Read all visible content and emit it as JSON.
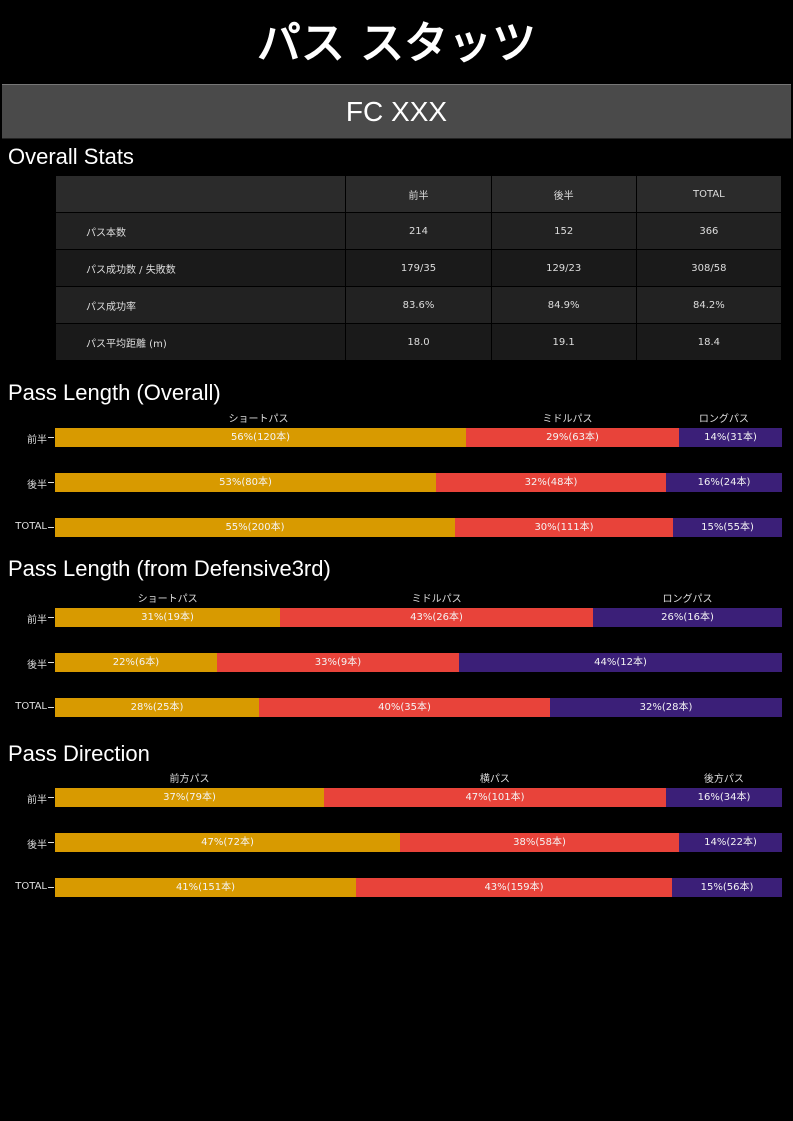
{
  "page_title": "パス スタッツ",
  "team_name": "FC XXX",
  "overall_stats": {
    "section_title": "Overall Stats",
    "columns": [
      "前半",
      "後半",
      "TOTAL"
    ],
    "rows": [
      {
        "label": "パス本数",
        "values": [
          "214",
          "152",
          "366"
        ]
      },
      {
        "label": "パス成功数 / 失敗数",
        "values": [
          "179/35",
          "129/23",
          "308/58"
        ]
      },
      {
        "label": "パス成功率",
        "values": [
          "83.6%",
          "84.9%",
          "84.2%"
        ]
      },
      {
        "label": "パス平均距離 (m)",
        "values": [
          "18.0",
          "19.1",
          "18.4"
        ]
      }
    ]
  },
  "colors": {
    "first": "#d89a00",
    "second": "#e8433a",
    "third": "#3b1f78"
  },
  "chart_data": [
    {
      "type": "bar",
      "stacked": "horizontal-100%",
      "title": "Pass Length (Overall)",
      "categories": [
        "前半",
        "後半",
        "TOTAL"
      ],
      "series": [
        {
          "name": "ショートパス",
          "values": [
            56,
            53,
            55
          ],
          "labels": [
            "56%(120本)",
            "53%(80本)",
            "55%(200本)"
          ]
        },
        {
          "name": "ミドルパス",
          "values": [
            29,
            32,
            30
          ],
          "labels": [
            "29%(63本)",
            "32%(48本)",
            "30%(111本)"
          ]
        },
        {
          "name": "ロングパス",
          "values": [
            14,
            16,
            15
          ],
          "labels": [
            "14%(31本)",
            "16%(24本)",
            "15%(55本)"
          ]
        }
      ]
    },
    {
      "type": "bar",
      "stacked": "horizontal-100%",
      "title": "Pass Length (from Defensive3rd)",
      "categories": [
        "前半",
        "後半",
        "TOTAL"
      ],
      "series": [
        {
          "name": "ショートパス",
          "values": [
            31,
            22,
            28
          ],
          "labels": [
            "31%(19本)",
            "22%(6本)",
            "28%(25本)"
          ]
        },
        {
          "name": "ミドルパス",
          "values": [
            43,
            33,
            40
          ],
          "labels": [
            "43%(26本)",
            "33%(9本)",
            "40%(35本)"
          ]
        },
        {
          "name": "ロングパス",
          "values": [
            26,
            44,
            32
          ],
          "labels": [
            "26%(16本)",
            "44%(12本)",
            "32%(28本)"
          ]
        }
      ]
    },
    {
      "type": "bar",
      "stacked": "horizontal-100%",
      "title": "Pass Direction",
      "categories": [
        "前半",
        "後半",
        "TOTAL"
      ],
      "series": [
        {
          "name": "前方パス",
          "values": [
            37,
            47,
            41
          ],
          "labels": [
            "37%(79本)",
            "47%(72本)",
            "41%(151本)"
          ]
        },
        {
          "name": "横パス",
          "values": [
            47,
            38,
            43
          ],
          "labels": [
            "47%(101本)",
            "38%(58本)",
            "43%(159本)"
          ]
        },
        {
          "name": "後方パス",
          "values": [
            16,
            14,
            15
          ],
          "labels": [
            "16%(34本)",
            "14%(22本)",
            "15%(56本)"
          ]
        }
      ]
    }
  ]
}
